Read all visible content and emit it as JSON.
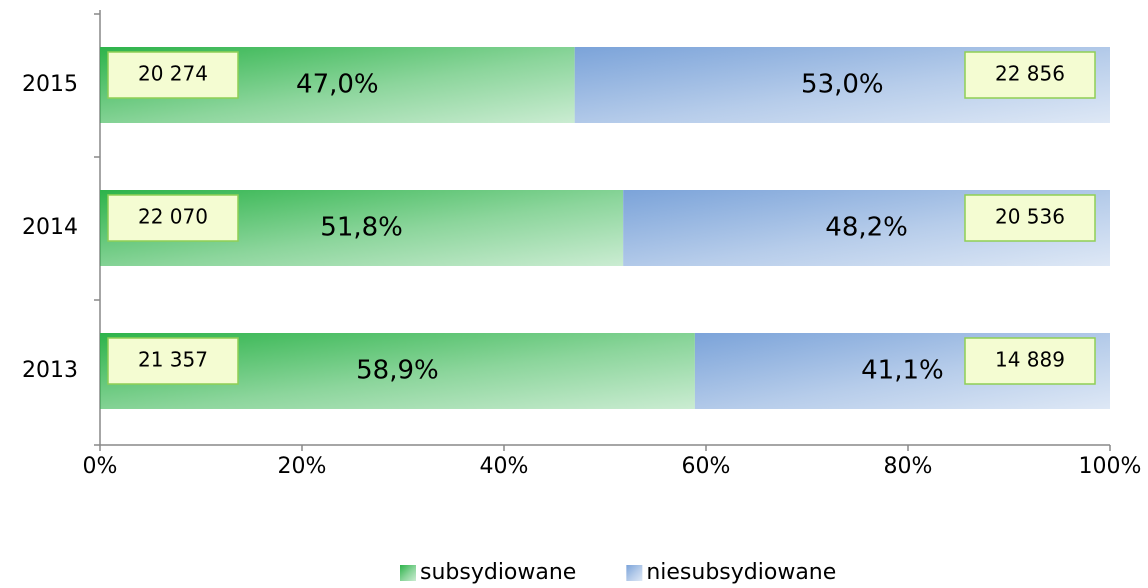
{
  "chart_data": {
    "type": "stacked_bar_horizontal",
    "categories": [
      "2015",
      "2014",
      "2013"
    ],
    "series": [
      {
        "name": "subsydiowane",
        "color": "#2db34a",
        "values": [
          47.0,
          51.8,
          58.9
        ],
        "value_labels": [
          "47,0%",
          "51,8%",
          "58,9%"
        ],
        "counts": [
          20274,
          22070,
          21357
        ],
        "count_labels": [
          "20 274",
          "22 070",
          "21 357"
        ]
      },
      {
        "name": "niesubsydiowane",
        "color": "#7ba3d9",
        "values": [
          53.0,
          48.2,
          41.1
        ],
        "value_labels": [
          "53,0%",
          "48,2%",
          "41,1%"
        ],
        "counts": [
          22856,
          20536,
          14889
        ],
        "count_labels": [
          "22 856",
          "20 536",
          "14 889"
        ]
      }
    ],
    "xlim": [
      0,
      100
    ],
    "xticks": [
      {
        "value": 0,
        "label": "0%"
      },
      {
        "value": 20,
        "label": "20%"
      },
      {
        "value": 40,
        "label": "40%"
      },
      {
        "value": 60,
        "label": "60%"
      },
      {
        "value": 80,
        "label": "80%"
      },
      {
        "value": 100,
        "label": "100%"
      }
    ],
    "legend": "bottom"
  }
}
